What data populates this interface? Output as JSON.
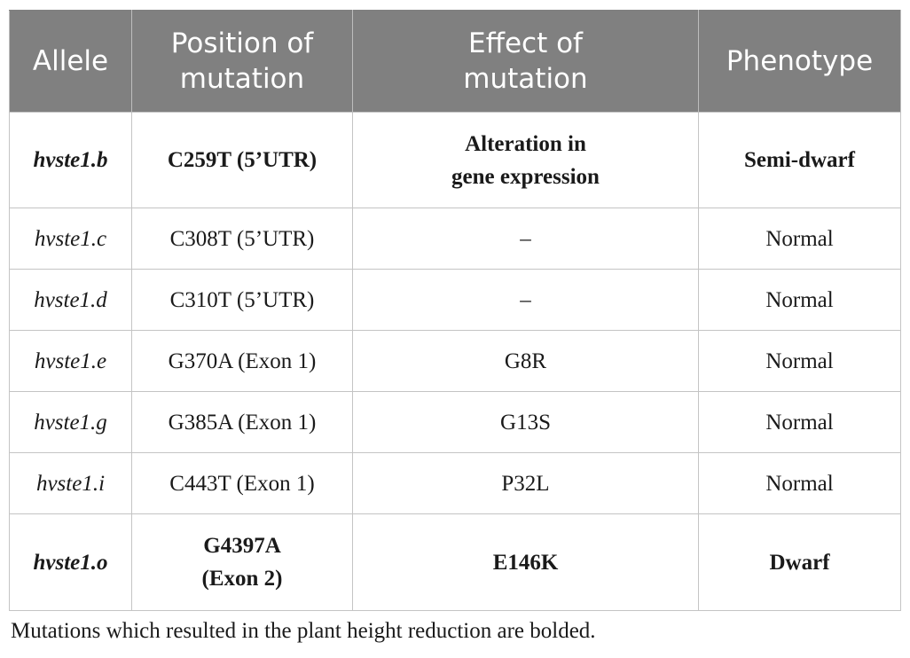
{
  "table": {
    "headers": {
      "allele": "Allele",
      "position_line1": "Position of",
      "position_line2": "mutation",
      "effect_line1": "Effect of",
      "effect_line2": "mutation",
      "phenotype": "Phenotype"
    },
    "rows": [
      {
        "allele": "hvste1.b",
        "position_line1": "C259T (5’UTR)",
        "position_line2": "",
        "effect_line1": "Alteration in",
        "effect_line2": "gene expression",
        "phenotype": "Semi-dwarf",
        "bold": true
      },
      {
        "allele": "hvste1.c",
        "position_line1": "C308T (5’UTR)",
        "position_line2": "",
        "effect_line1": "–",
        "effect_line2": "",
        "phenotype": "Normal",
        "bold": false
      },
      {
        "allele": "hvste1.d",
        "position_line1": "C310T (5’UTR)",
        "position_line2": "",
        "effect_line1": "–",
        "effect_line2": "",
        "phenotype": "Normal",
        "bold": false
      },
      {
        "allele": "hvste1.e",
        "position_line1": "G370A (Exon 1)",
        "position_line2": "",
        "effect_line1": "G8R",
        "effect_line2": "",
        "phenotype": "Normal",
        "bold": false
      },
      {
        "allele": "hvste1.g",
        "position_line1": "G385A (Exon 1)",
        "position_line2": "",
        "effect_line1": "G13S",
        "effect_line2": "",
        "phenotype": "Normal",
        "bold": false
      },
      {
        "allele": "hvste1.i",
        "position_line1": "C443T (Exon 1)",
        "position_line2": "",
        "effect_line1": "P32L",
        "effect_line2": "",
        "phenotype": "Normal",
        "bold": false
      },
      {
        "allele": "hvste1.o",
        "position_line1": "G4397A",
        "position_line2": "(Exon 2)",
        "effect_line1": "E146K",
        "effect_line2": "",
        "phenotype": "Dwarf",
        "bold": true
      }
    ]
  },
  "footnote": "Mutations which resulted in the plant height reduction are bolded."
}
